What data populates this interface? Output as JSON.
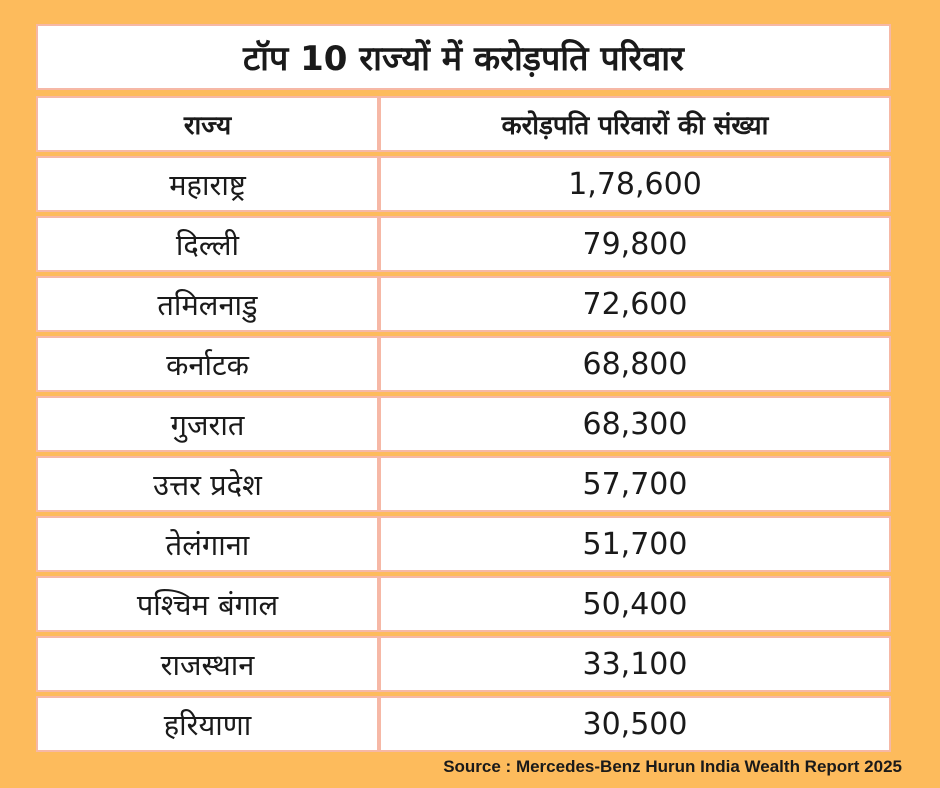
{
  "title": "टॉप 10 राज्यों में करोड़पति परिवार",
  "table": {
    "headers": [
      "राज्य",
      "करोड़पति परिवारों की संख्या"
    ],
    "rows": [
      [
        "महाराष्ट्र",
        "1,78,600"
      ],
      [
        "दिल्ली",
        "79,800"
      ],
      [
        "तमिलनाडु",
        "72,600"
      ],
      [
        "कर्नाटक",
        "68,800"
      ],
      [
        "गुजरात",
        "68,300"
      ],
      [
        "उत्तर प्रदेश",
        "57,700"
      ],
      [
        "तेलंगाना",
        "51,700"
      ],
      [
        "पश्चिम बंगाल",
        "50,400"
      ],
      [
        "राजस्थान",
        "33,100"
      ],
      [
        "हरियाणा",
        "30,500"
      ]
    ]
  },
  "source": "Source : Mercedes-Benz Hurun India Wealth Report 2025",
  "colors": {
    "background": "#fdbb5c",
    "cell_background": "#ffffff",
    "cell_border": "#f6b8a6"
  }
}
